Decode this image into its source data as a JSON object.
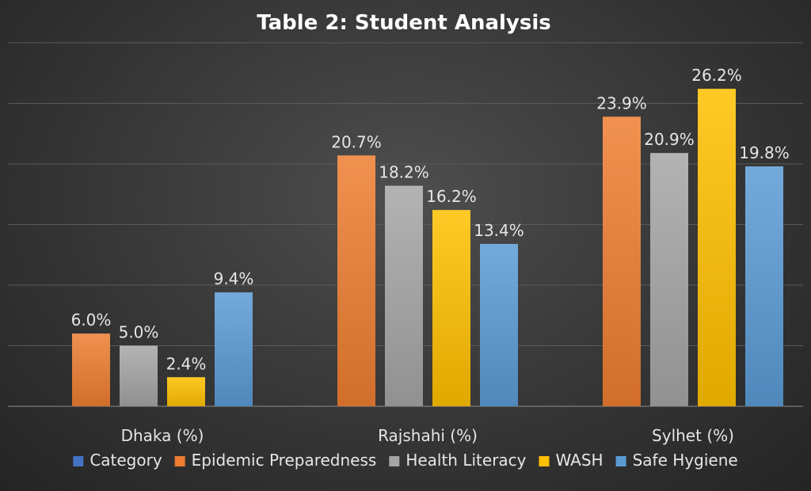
{
  "chart_data": {
    "type": "bar",
    "title": "Table 2: Student Analysis",
    "categories": [
      "Dhaka (%)",
      "Rajshahi (%)",
      "Sylhet (%)"
    ],
    "ylim": [
      0,
      30
    ],
    "grid": true,
    "legend_position": "bottom",
    "legend": [
      {
        "name": "Category",
        "color": "#4472c4"
      },
      {
        "name": "Epidemic Preparedness",
        "color": "#ed7d31"
      },
      {
        "name": "Health Literacy",
        "color": "#a5a5a5"
      },
      {
        "name": "WASH",
        "color": "#ffc000"
      },
      {
        "name": "Safe Hygiene",
        "color": "#5b9bd5"
      }
    ],
    "series": [
      {
        "name": "Epidemic Preparedness",
        "color": "#ed7d31",
        "values": [
          6.0,
          20.7,
          23.9
        ],
        "labels": [
          "6.0%",
          "20.7%",
          "23.9%"
        ]
      },
      {
        "name": "Health Literacy",
        "color": "#a5a5a5",
        "values": [
          5.0,
          18.2,
          20.9
        ],
        "labels": [
          "5.0%",
          "18.2%",
          "20.9%"
        ]
      },
      {
        "name": "WASH",
        "color": "#ffc000",
        "values": [
          2.4,
          16.2,
          26.2
        ],
        "labels": [
          "2.4%",
          "16.2%",
          "26.2%"
        ]
      },
      {
        "name": "Safe Hygiene",
        "color": "#5b9bd5",
        "values": [
          9.4,
          13.4,
          19.8
        ],
        "labels": [
          "9.4%",
          "13.4%",
          "19.8%"
        ]
      }
    ]
  }
}
